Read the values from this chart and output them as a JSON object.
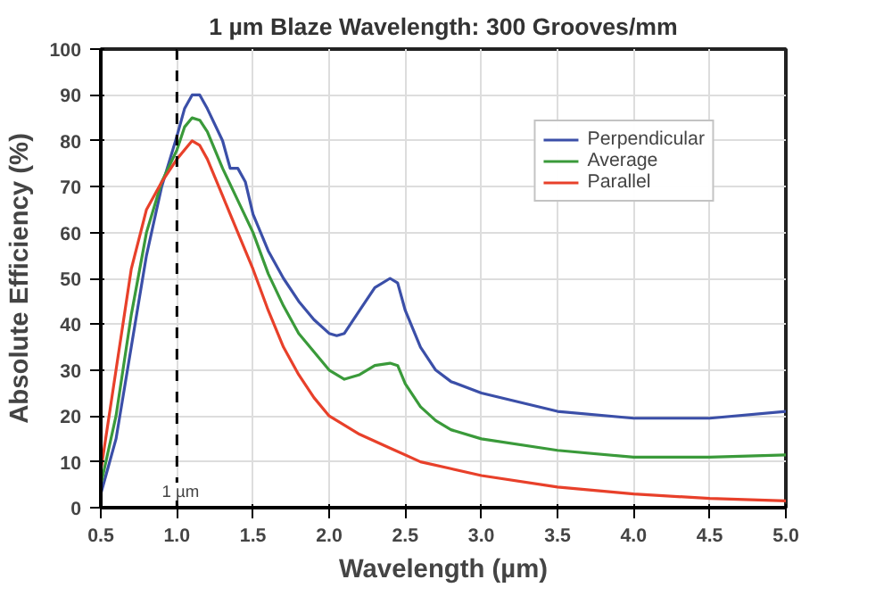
{
  "chart_data": {
    "type": "line",
    "title": "1 µm Blaze Wavelength: 300 Grooves/mm",
    "xlabel": "Wavelength (µm)",
    "ylabel": "Absolute Efficiency (%)",
    "xlim": [
      0.5,
      5.0
    ],
    "xticks": [
      {
        "value": 0.5,
        "label": "0.5"
      },
      {
        "value": 1.0,
        "label": "1.0"
      },
      {
        "value": 1.5,
        "label": "1.5"
      },
      {
        "value": 2.0,
        "label": "2.0"
      },
      {
        "value": 2.5,
        "label": "2.5"
      },
      {
        "value": 3.0,
        "label": "3.0"
      },
      {
        "value": 3.5,
        "label": "3.5"
      },
      {
        "value": 4.0,
        "label": "4.0"
      },
      {
        "value": 4.5,
        "label": "4.5"
      },
      {
        "value": 5.0,
        "label": "5.0"
      }
    ],
    "ylim": [
      0,
      100
    ],
    "yticks": [
      0,
      10,
      20,
      30,
      40,
      50,
      60,
      70,
      80,
      90,
      100
    ],
    "grid": true,
    "legend": "top right",
    "line_style": "solid",
    "ref_lines": [
      {
        "axis": "x",
        "value": 1.0,
        "label": "1 µm",
        "color": "#000000",
        "line_style": "dashed"
      }
    ],
    "series": [
      {
        "name": "Perpendicular",
        "color": "#3b4fa8",
        "x": [
          0.5,
          0.6,
          0.7,
          0.8,
          0.9,
          1.0,
          1.05,
          1.1,
          1.15,
          1.2,
          1.3,
          1.35,
          1.4,
          1.45,
          1.5,
          1.6,
          1.7,
          1.8,
          1.9,
          2.0,
          2.05,
          2.1,
          2.2,
          2.3,
          2.4,
          2.45,
          2.5,
          2.6,
          2.7,
          2.8,
          3.0,
          3.5,
          4.0,
          4.5,
          5.0
        ],
        "values": [
          3,
          15,
          35,
          55,
          70,
          81,
          87,
          90,
          90,
          87,
          80,
          74,
          74,
          71,
          64,
          56,
          50,
          45,
          41,
          38,
          37.5,
          38,
          43,
          48,
          50,
          49,
          43,
          35,
          30,
          27.5,
          25,
          21,
          19.5,
          19.5,
          21
        ]
      },
      {
        "name": "Average",
        "color": "#3a9a3a",
        "x": [
          0.5,
          0.6,
          0.7,
          0.8,
          0.9,
          1.0,
          1.05,
          1.1,
          1.15,
          1.2,
          1.3,
          1.4,
          1.5,
          1.6,
          1.7,
          1.8,
          1.9,
          2.0,
          2.1,
          2.2,
          2.3,
          2.4,
          2.45,
          2.5,
          2.6,
          2.7,
          2.8,
          3.0,
          3.5,
          4.0,
          4.5,
          5.0
        ],
        "values": [
          5,
          20,
          42,
          60,
          71,
          78,
          83,
          85,
          84.5,
          82,
          74,
          67,
          60,
          51,
          44,
          38,
          34,
          30,
          28,
          29,
          31,
          31.5,
          31,
          27,
          22,
          19,
          17,
          15,
          12.5,
          11,
          11,
          11.5
        ]
      },
      {
        "name": "Parallel",
        "color": "#e8402a",
        "x": [
          0.5,
          0.6,
          0.7,
          0.8,
          0.9,
          1.0,
          1.05,
          1.1,
          1.15,
          1.2,
          1.3,
          1.4,
          1.5,
          1.6,
          1.7,
          1.8,
          1.9,
          2.0,
          2.2,
          2.4,
          2.6,
          2.8,
          3.0,
          3.5,
          4.0,
          4.5,
          5.0
        ],
        "values": [
          8,
          30,
          52,
          65,
          71,
          76,
          78,
          80,
          79,
          76,
          68,
          60,
          52,
          43,
          35,
          29,
          24,
          20,
          16,
          13,
          10,
          8.5,
          7,
          4.5,
          3,
          2,
          1.5
        ]
      }
    ]
  }
}
